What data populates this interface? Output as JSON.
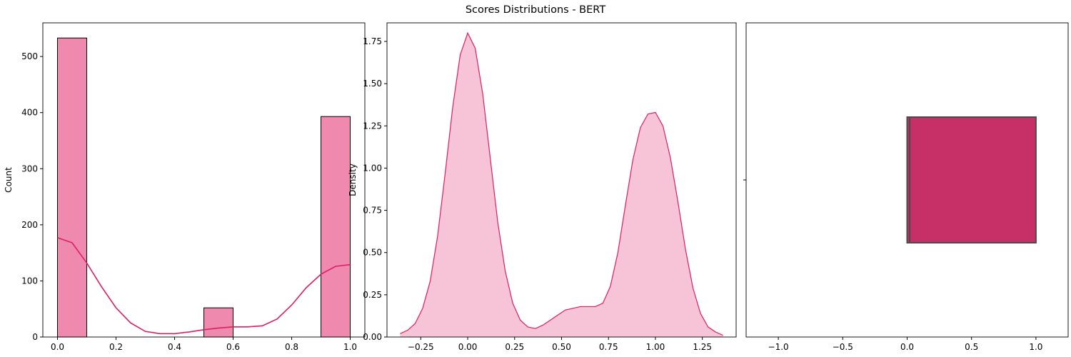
{
  "figure": {
    "title": "Scores Distributions - BERT"
  },
  "colors": {
    "hist_bar": "#ef89ae",
    "kde_line": "#dc1f5e",
    "kde_fill": "#f7c4d7",
    "box_fill": "#c73067",
    "box_edge": "#4a4a4a"
  },
  "chart_data": [
    {
      "type": "bar",
      "subtype": "histogram-with-kde",
      "xlabel": "",
      "ylabel": "Count",
      "xlim": [
        -0.05,
        1.05
      ],
      "ylim": [
        0,
        560
      ],
      "xticks": [
        0.0,
        0.2,
        0.4,
        0.6,
        0.8,
        1.0
      ],
      "xtick_labels": [
        "0.0",
        "0.2",
        "0.4",
        "0.6",
        "0.8",
        "1.0"
      ],
      "yticks": [
        0,
        100,
        200,
        300,
        400,
        500
      ],
      "ytick_labels": [
        "0",
        "100",
        "200",
        "300",
        "400",
        "500"
      ],
      "bins": [
        {
          "x0": 0.0,
          "x1": 0.1,
          "count": 533
        },
        {
          "x0": 0.5,
          "x1": 0.6,
          "count": 52
        },
        {
          "x0": 0.9,
          "x1": 1.0,
          "count": 393
        }
      ],
      "kde": {
        "x": [
          0.0,
          0.05,
          0.1,
          0.15,
          0.2,
          0.25,
          0.3,
          0.35,
          0.4,
          0.45,
          0.5,
          0.55,
          0.6,
          0.65,
          0.7,
          0.75,
          0.8,
          0.85,
          0.9,
          0.95,
          1.0
        ],
        "y": [
          177,
          168,
          132,
          90,
          52,
          25,
          10,
          6,
          6,
          9,
          13,
          16,
          18,
          18,
          20,
          32,
          57,
          88,
          112,
          126,
          129
        ]
      }
    },
    {
      "type": "area",
      "subtype": "kde",
      "xlabel": "",
      "ylabel": "Density",
      "xlim": [
        -0.43,
        1.43
      ],
      "ylim": [
        0,
        1.86
      ],
      "xticks": [
        -0.25,
        0.0,
        0.25,
        0.5,
        0.75,
        1.0,
        1.25
      ],
      "xtick_labels": [
        "−0.25",
        "0.00",
        "0.25",
        "0.50",
        "0.75",
        "1.00",
        "1.25"
      ],
      "yticks": [
        0.0,
        0.25,
        0.5,
        0.75,
        1.0,
        1.25,
        1.5,
        1.75
      ],
      "ytick_labels": [
        "0.00",
        "0.25",
        "0.50",
        "0.75",
        "1.00",
        "1.25",
        "1.50",
        "1.75"
      ],
      "x": [
        -0.36,
        -0.32,
        -0.28,
        -0.24,
        -0.2,
        -0.16,
        -0.12,
        -0.08,
        -0.04,
        0.0,
        0.04,
        0.08,
        0.12,
        0.16,
        0.2,
        0.24,
        0.28,
        0.32,
        0.36,
        0.4,
        0.44,
        0.48,
        0.52,
        0.56,
        0.6,
        0.64,
        0.68,
        0.72,
        0.76,
        0.8,
        0.84,
        0.88,
        0.92,
        0.96,
        1.0,
        1.04,
        1.08,
        1.12,
        1.16,
        1.2,
        1.24,
        1.28,
        1.32,
        1.36
      ],
      "y": [
        0.02,
        0.04,
        0.08,
        0.17,
        0.33,
        0.6,
        0.97,
        1.36,
        1.67,
        1.8,
        1.71,
        1.44,
        1.06,
        0.68,
        0.39,
        0.2,
        0.1,
        0.06,
        0.05,
        0.07,
        0.1,
        0.13,
        0.16,
        0.17,
        0.18,
        0.18,
        0.18,
        0.2,
        0.3,
        0.5,
        0.78,
        1.05,
        1.24,
        1.32,
        1.33,
        1.25,
        1.06,
        0.8,
        0.52,
        0.29,
        0.14,
        0.06,
        0.03,
        0.01
      ]
    },
    {
      "type": "box",
      "xlabel": "",
      "ylabel": "",
      "xlim": [
        -1.25,
        1.25
      ],
      "xticks": [
        -1.0,
        -0.5,
        0.0,
        0.5,
        1.0
      ],
      "xtick_labels": [
        "−1.0",
        "−0.5",
        "0.0",
        "0.5",
        "1.0"
      ],
      "box": {
        "q1": 0.0,
        "median": 0.02,
        "q3": 1.0,
        "whisker_low": 0.0,
        "whisker_high": 1.0
      }
    }
  ]
}
